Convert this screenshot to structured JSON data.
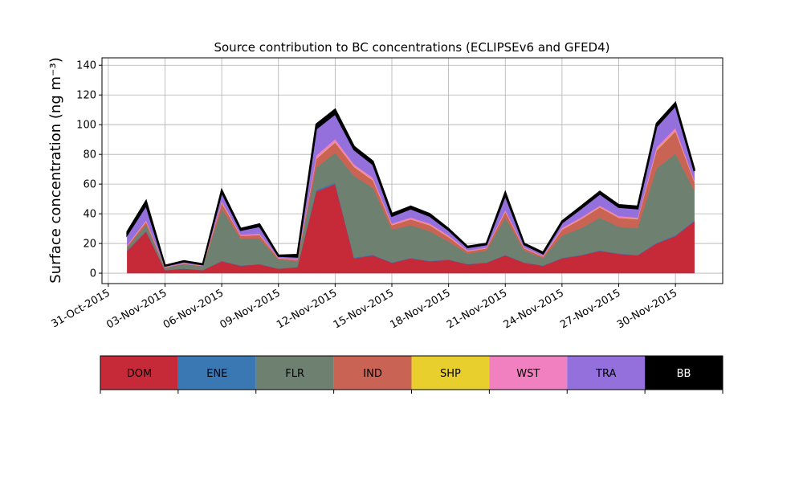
{
  "chart_data": {
    "type": "stacked_area",
    "title": "Source contribution to BC concentrations (ECLIPSEv6 and GFED4)",
    "y_label": "Surface concentration (ng m⁻³)",
    "x": [
      "2015-11-01",
      "2015-11-02",
      "2015-11-03",
      "2015-11-04",
      "2015-11-05",
      "2015-11-06",
      "2015-11-07",
      "2015-11-08",
      "2015-11-09",
      "2015-11-10",
      "2015-11-11",
      "2015-11-12",
      "2015-11-13",
      "2015-11-14",
      "2015-11-15",
      "2015-11-16",
      "2015-11-17",
      "2015-11-18",
      "2015-11-19",
      "2015-11-20",
      "2015-11-21",
      "2015-11-22",
      "2015-11-23",
      "2015-11-24",
      "2015-11-25",
      "2015-11-26",
      "2015-11-27",
      "2015-11-28",
      "2015-11-29",
      "2015-11-30",
      "2015-12-01"
    ],
    "series": [
      {
        "name": "DOM",
        "color": "#c62a38",
        "values": [
          15,
          28,
          2,
          3,
          2,
          8,
          5,
          6,
          3,
          4,
          55,
          60,
          10,
          12,
          7,
          10,
          8,
          9,
          6,
          7,
          12,
          7,
          5,
          10,
          12,
          15,
          13,
          12,
          20,
          25,
          35
        ]
      },
      {
        "name": "ENE",
        "color": "#3a78b3",
        "values": [
          0.3,
          0.5,
          0.1,
          0.1,
          0.1,
          0.3,
          0.2,
          0.2,
          0.1,
          0.1,
          1,
          1,
          0.5,
          0.5,
          0.3,
          0.3,
          0.3,
          0.3,
          0.2,
          0.2,
          0.3,
          0.2,
          0.2,
          0.3,
          0.3,
          0.3,
          0.3,
          0.3,
          0.5,
          0.5,
          0.5
        ]
      },
      {
        "name": "FLR",
        "color": "#6e8070",
        "values": [
          2,
          4,
          1.5,
          3,
          2.5,
          35,
          18,
          17,
          6,
          4,
          15,
          20,
          55,
          45,
          22,
          22,
          20,
          12,
          7,
          8,
          25,
          8,
          5,
          15,
          18,
          22,
          18,
          18,
          50,
          55,
          20
        ]
      },
      {
        "name": "IND",
        "color": "#c96455",
        "values": [
          1,
          2,
          0.3,
          0.4,
          0.3,
          4,
          2,
          2.5,
          1,
          1,
          6,
          7,
          6,
          5,
          3,
          4,
          4,
          3,
          1.5,
          1.5,
          4,
          1.5,
          1,
          4,
          6,
          7,
          6,
          6,
          12,
          15,
          6
        ]
      },
      {
        "name": "SHP",
        "color": "#e8cf2e",
        "values": [
          0.1,
          0.2,
          0,
          0,
          0,
          0.2,
          0.1,
          0.1,
          0,
          0,
          0.3,
          0.3,
          0.3,
          0.3,
          0.2,
          0.2,
          0.2,
          0.2,
          0.1,
          0.1,
          0.2,
          0.1,
          0.1,
          0.2,
          0.2,
          0.2,
          0.2,
          0.2,
          0.3,
          0.3,
          0.2
        ]
      },
      {
        "name": "WST",
        "color": "#f080c0",
        "values": [
          0.5,
          1,
          0.2,
          0.3,
          0.2,
          1,
          0.7,
          0.8,
          0.4,
          0.4,
          2,
          2,
          1.5,
          1.5,
          1,
          1,
          1,
          1,
          0.5,
          0.5,
          1,
          0.5,
          0.4,
          1,
          1,
          1,
          1,
          1,
          2,
          2,
          1
        ]
      },
      {
        "name": "TRA",
        "color": "#9370db",
        "values": [
          7,
          10,
          0.8,
          1,
          0.7,
          6,
          3,
          5,
          1,
          1.5,
          18,
          17,
          10,
          9,
          5,
          6,
          5,
          3.5,
          2,
          2,
          10,
          2,
          1.5,
          3.5,
          6,
          8,
          6,
          6,
          14,
          15,
          6
        ]
      },
      {
        "name": "BB",
        "color": "#000000",
        "values": [
          2,
          3,
          0.3,
          0.5,
          0.4,
          1.5,
          1,
          1.5,
          0.5,
          1.5,
          3,
          3,
          2,
          2,
          1.5,
          1.5,
          1.5,
          1,
          0.7,
          0.7,
          2,
          0.7,
          0.8,
          1,
          1.5,
          1.5,
          1.5,
          1.5,
          2,
          2,
          1.5
        ]
      }
    ],
    "xlim": [
      "2015-10-30T16:00",
      "2015-12-02T12:00"
    ],
    "xticks": [
      {
        "value": "2015-10-31",
        "label": "31-Oct-2015"
      },
      {
        "value": "2015-11-03",
        "label": "03-Nov-2015"
      },
      {
        "value": "2015-11-06",
        "label": "06-Nov-2015"
      },
      {
        "value": "2015-11-09",
        "label": "09-Nov-2015"
      },
      {
        "value": "2015-11-12",
        "label": "12-Nov-2015"
      },
      {
        "value": "2015-11-15",
        "label": "15-Nov-2015"
      },
      {
        "value": "2015-11-18",
        "label": "18-Nov-2015"
      },
      {
        "value": "2015-11-21",
        "label": "21-Nov-2015"
      },
      {
        "value": "2015-11-24",
        "label": "24-Nov-2015"
      },
      {
        "value": "2015-11-27",
        "label": "27-Nov-2015"
      },
      {
        "value": "2015-11-30",
        "label": "30-Nov-2015"
      }
    ],
    "ylim": [
      -7,
      145
    ],
    "yticks": [
      0,
      20,
      40,
      60,
      80,
      100,
      120,
      140
    ],
    "grid": true
  }
}
